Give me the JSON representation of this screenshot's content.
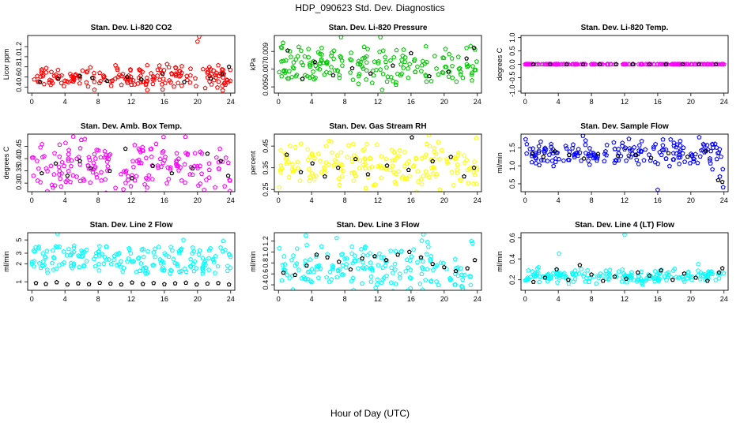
{
  "figure": {
    "title": "HDP_090623  Std. Dev. Diagnostics",
    "xlabel": "Hour of Day (UTC)"
  },
  "chart_data": [
    {
      "type": "scatter",
      "title": "Stan. Dev. Li-820 CO2",
      "ylabel": "Licor ppm",
      "x_ticks": [
        0,
        4,
        8,
        12,
        16,
        20,
        24
      ],
      "y_ticks": [
        0.4,
        0.6,
        0.8,
        1.0,
        1.2
      ],
      "y_tick_labels": [
        "0.4",
        "0.6",
        "0.8",
        "1.0",
        "1.2"
      ],
      "xlim": [
        -0.5,
        24.5
      ],
      "ylim": [
        0.28,
        1.42
      ],
      "color": "#ff0000",
      "series": [
        {
          "sample_of": "colored",
          "x": [
            0.3,
            1.2,
            2.5,
            3.6,
            5.1,
            6.8,
            8.2,
            9.7,
            11.0,
            12.4,
            13.9,
            15.2,
            16.6,
            17.8,
            19.1,
            20.0,
            20.2,
            21.3,
            22.5,
            23.7
          ],
          "y": [
            0.55,
            0.72,
            0.48,
            0.63,
            0.59,
            0.41,
            0.68,
            0.52,
            0.66,
            0.45,
            0.58,
            0.74,
            0.53,
            0.61,
            0.49,
            1.3,
            1.4,
            0.7,
            0.83,
            0.5
          ]
        },
        {
          "sample_of": "black",
          "x": [
            1.0,
            3.2,
            5.8,
            7.3,
            9.1,
            11.5,
            13.2,
            15.8,
            18.4,
            21.6,
            23.0,
            23.8
          ],
          "y": [
            0.5,
            0.56,
            0.62,
            0.58,
            0.52,
            0.6,
            0.55,
            0.66,
            0.5,
            0.57,
            0.65,
            0.8
          ]
        }
      ]
    },
    {
      "type": "scatter",
      "title": "Stan. Dev. Li-820 Pressure",
      "ylabel": "kPa",
      "x_ticks": [
        0,
        4,
        8,
        12,
        16,
        20,
        24
      ],
      "y_ticks": [
        0.005,
        0.007,
        0.009
      ],
      "y_tick_labels": [
        "0.005",
        "0.007",
        "0.009"
      ],
      "xlim": [
        -0.5,
        24.5
      ],
      "ylim": [
        0.0043,
        0.0108
      ],
      "color": "#00c800",
      "series": [
        {
          "sample_of": "colored",
          "x": [
            0.4,
            0.9,
            2.1,
            3.5,
            4.8,
            6.2,
            7.7,
            9.0,
            10.4,
            11.8,
            12.3,
            13.6,
            15.1,
            16.5,
            17.9,
            19.3,
            20.6,
            21.9,
            23.2,
            23.8
          ],
          "y": [
            0.0094,
            0.0068,
            0.0081,
            0.0062,
            0.0089,
            0.0066,
            0.0074,
            0.0058,
            0.0083,
            0.0069,
            0.0106,
            0.0061,
            0.0092,
            0.0067,
            0.0078,
            0.0064,
            0.0087,
            0.0071,
            0.0096,
            0.0069
          ]
        },
        {
          "sample_of": "black",
          "x": [
            1.1,
            2.9,
            4.4,
            6.6,
            8.9,
            11.1,
            13.8,
            16.0,
            18.2,
            20.5,
            22.7,
            23.6
          ],
          "y": [
            0.0091,
            0.0059,
            0.0078,
            0.0063,
            0.0071,
            0.0065,
            0.0074,
            0.0088,
            0.0062,
            0.0067,
            0.0082,
            0.0094
          ]
        }
      ]
    },
    {
      "type": "scatter",
      "title": "Stan. Dev. Li-820 Temp.",
      "ylabel": "degrees C",
      "x_ticks": [
        0,
        4,
        8,
        12,
        16,
        20,
        24
      ],
      "y_ticks": [
        -1.0,
        -0.5,
        0.0,
        0.5,
        1.0
      ],
      "y_tick_labels": [
        "-1.0",
        "-0.5",
        "0.0",
        "0.5",
        "1.0"
      ],
      "xlim": [
        -0.5,
        24.5
      ],
      "ylim": [
        -1.08,
        1.08
      ],
      "color": "#ff00ff",
      "series": [
        {
          "sample_of": "colored",
          "x": [
            0,
            2,
            4,
            6,
            8,
            10,
            12,
            14,
            16,
            18,
            20,
            22,
            24
          ],
          "y": [
            0,
            0,
            0,
            0,
            0,
            0,
            0,
            0,
            0,
            0,
            0,
            0,
            0
          ]
        },
        {
          "sample_of": "black",
          "x": [
            1,
            3,
            5,
            7,
            9,
            11,
            13,
            15,
            17,
            19,
            21,
            23
          ],
          "y": [
            0,
            0,
            0,
            0,
            0,
            0,
            0,
            0,
            0,
            0,
            0,
            0
          ]
        }
      ]
    },
    {
      "type": "scatter",
      "title": "Stan. Dev. Amb. Box Temp.",
      "ylabel": "degrees C",
      "x_ticks": [
        0,
        4,
        8,
        12,
        16,
        20,
        24
      ],
      "y_ticks": [
        0.3,
        0.35,
        0.4,
        0.45
      ],
      "y_tick_labels": [
        "0.30",
        "0.35",
        "0.40",
        "0.45"
      ],
      "xlim": [
        -0.5,
        24.5
      ],
      "ylim": [
        0.265,
        0.5
      ],
      "color": "#ff00ff",
      "series": [
        {
          "sample_of": "colored",
          "x": [
            0.2,
            1.5,
            2.8,
            3.9,
            5.0,
            6.3,
            7.6,
            8.8,
            10.1,
            11.4,
            12.7,
            13.8,
            15.0,
            16.3,
            17.5,
            18.8,
            20.1,
            21.4,
            22.7,
            23.9
          ],
          "y": [
            0.33,
            0.41,
            0.29,
            0.37,
            0.49,
            0.31,
            0.36,
            0.43,
            0.28,
            0.35,
            0.39,
            0.32,
            0.46,
            0.3,
            0.37,
            0.42,
            0.29,
            0.38,
            0.44,
            0.31
          ]
        },
        {
          "sample_of": "black",
          "x": [
            1.2,
            2.9,
            4.3,
            5.8,
            7.1,
            9.4,
            11.3,
            12.1,
            14.6,
            16.9,
            19.4,
            21.2,
            22.8,
            23.7
          ],
          "y": [
            0.34,
            0.38,
            0.33,
            0.39,
            0.36,
            0.35,
            0.44,
            0.32,
            0.37,
            0.34,
            0.36,
            0.42,
            0.39,
            0.33
          ]
        }
      ]
    },
    {
      "type": "scatter",
      "title": "Stan. Dev. Gas Stream RH",
      "ylabel": "percent",
      "x_ticks": [
        0,
        4,
        8,
        12,
        16,
        20,
        24
      ],
      "y_ticks": [
        0.25,
        0.35,
        0.45
      ],
      "y_tick_labels": [
        "0.25",
        "0.35",
        "0.45"
      ],
      "xlim": [
        -0.5,
        24.5
      ],
      "ylim": [
        0.24,
        0.505
      ],
      "color": "#ffff00",
      "series": [
        {
          "sample_of": "colored",
          "x": [
            0.3,
            1.4,
            2.6,
            3.8,
            5.2,
            6.4,
            7.7,
            8.9,
            10.2,
            11.5,
            12.8,
            14.0,
            15.3,
            16.6,
            17.9,
            19.1,
            20.4,
            21.7,
            22.9,
            23.9
          ],
          "y": [
            0.36,
            0.45,
            0.29,
            0.4,
            0.33,
            0.47,
            0.31,
            0.38,
            0.43,
            0.27,
            0.35,
            0.42,
            0.3,
            0.39,
            0.46,
            0.32,
            0.37,
            0.41,
            0.28,
            0.34
          ]
        },
        {
          "sample_of": "black",
          "x": [
            1.0,
            2.7,
            4.1,
            5.6,
            7.2,
            9.3,
            10.8,
            13.1,
            15.7,
            16.1,
            18.6,
            20.8,
            22.4,
            23.6
          ],
          "y": [
            0.41,
            0.33,
            0.37,
            0.31,
            0.35,
            0.39,
            0.32,
            0.36,
            0.34,
            0.49,
            0.38,
            0.4,
            0.31,
            0.35
          ]
        }
      ]
    },
    {
      "type": "scatter",
      "title": "Stan. Dev. Sample Flow",
      "ylabel": "ml/min",
      "x_ticks": [
        0,
        4,
        8,
        12,
        16,
        20,
        24
      ],
      "y_ticks": [
        0.5,
        1.0,
        1.5
      ],
      "y_tick_labels": [
        "0.5",
        "1.0",
        "1.5"
      ],
      "xlim": [
        -0.5,
        24.5
      ],
      "ylim": [
        0.28,
        1.88
      ],
      "color": "#0000ff",
      "series": [
        {
          "sample_of": "colored",
          "x": [
            0.2,
            1.3,
            2.5,
            3.7,
            4.9,
            6.1,
            7.3,
            8.5,
            9.7,
            10.9,
            12.1,
            13.3,
            14.5,
            15.7,
            16.0,
            17.9,
            19.1,
            20.3,
            21.5,
            22.6,
            23.5,
            23.9
          ],
          "y": [
            1.6,
            1.3,
            1.45,
            1.2,
            1.55,
            1.35,
            1.7,
            1.25,
            1.4,
            1.15,
            1.5,
            1.3,
            1.45,
            1.1,
            0.33,
            1.35,
            1.5,
            1.2,
            1.6,
            0.9,
            0.7,
            0.4
          ]
        },
        {
          "sample_of": "black",
          "x": [
            0.9,
            2.2,
            3.6,
            5.3,
            7.1,
            8.8,
            11.2,
            13.4,
            15.2,
            17.3,
            19.6,
            21.8,
            23.3,
            23.8
          ],
          "y": [
            1.35,
            1.25,
            1.4,
            1.3,
            1.2,
            1.33,
            1.28,
            1.3,
            1.22,
            1.35,
            1.25,
            1.4,
            0.6,
            0.55
          ]
        }
      ]
    },
    {
      "type": "scatter",
      "title": "Stan. Dev. Line 2 Flow",
      "ylabel": "ml/min",
      "x_ticks": [
        0,
        4,
        8,
        12,
        16,
        20,
        24
      ],
      "y_ticks": [
        1,
        2,
        3,
        5
      ],
      "y_tick_labels": [
        "1",
        "2",
        "3",
        "5"
      ],
      "y_scale": "log",
      "xlim": [
        -0.5,
        24.5
      ],
      "ylim": [
        0.72,
        6.6
      ],
      "color": "#00ffff",
      "series": [
        {
          "sample_of": "colored",
          "x": [
            0.3,
            1.5,
            2.7,
            3.1,
            3.9,
            5.1,
            6.3,
            7.5,
            8.7,
            9.9,
            11.1,
            12.3,
            13.5,
            14.7,
            15.9,
            17.1,
            18.3,
            19.5,
            20.7,
            21.9,
            23.1,
            23.8
          ],
          "y": [
            2.2,
            1.9,
            2.5,
            6.4,
            2.1,
            4.0,
            1.8,
            2.4,
            2.0,
            2.3,
            1.7,
            2.2,
            2.6,
            1.9,
            2.1,
            2.4,
            5.0,
            2.0,
            1.8,
            2.3,
            4.8,
            2.9
          ]
        },
        {
          "sample_of": "black",
          "x": [
            0.5,
            1.7,
            3.0,
            4.3,
            5.6,
            6.9,
            8.2,
            9.5,
            10.8,
            12.1,
            13.4,
            14.7,
            16.0,
            17.3,
            18.6,
            19.9,
            21.2,
            22.5,
            23.8
          ],
          "y": [
            0.95,
            0.92,
            0.98,
            0.9,
            0.94,
            0.91,
            0.96,
            0.93,
            0.9,
            0.97,
            0.92,
            0.95,
            0.91,
            0.94,
            0.96,
            0.9,
            0.93,
            0.95,
            0.9
          ]
        }
      ]
    },
    {
      "type": "scatter",
      "title": "Stan. Dev. Line 3 Flow",
      "ylabel": "ml/min",
      "x_ticks": [
        0,
        4,
        8,
        12,
        16,
        20,
        24
      ],
      "y_ticks": [
        0.4,
        0.6,
        0.8,
        1.0,
        1.2
      ],
      "y_tick_labels": [
        "0.4",
        "0.6",
        "0.8",
        "1.0",
        "1.2"
      ],
      "xlim": [
        -0.5,
        24.5
      ],
      "ylim": [
        0.3,
        1.35
      ],
      "color": "#00ffff",
      "series": [
        {
          "sample_of": "colored",
          "x": [
            0.4,
            1.6,
            2.8,
            3.3,
            4.0,
            5.2,
            6.4,
            7.6,
            8.8,
            10.0,
            11.2,
            12.4,
            13.6,
            14.8,
            16.0,
            17.2,
            17.5,
            18.4,
            19.6,
            20.8,
            22.0,
            23.2
          ],
          "y": [
            0.48,
            0.85,
            0.52,
            1.3,
            0.45,
            1.1,
            0.5,
            0.95,
            0.47,
            1.05,
            0.55,
            0.9,
            0.44,
            1.0,
            0.52,
            0.88,
            1.32,
            0.46,
            0.8,
            0.5,
            0.7,
            0.55
          ]
        },
        {
          "sample_of": "black",
          "x": [
            0.6,
            2.0,
            3.4,
            4.6,
            5.9,
            7.3,
            8.7,
            10.1,
            11.6,
            13.0,
            14.4,
            15.8,
            17.2,
            18.6,
            20.0,
            21.4,
            22.8,
            23.7
          ],
          "y": [
            0.62,
            0.58,
            0.75,
            0.95,
            0.9,
            0.82,
            0.68,
            0.88,
            0.92,
            0.85,
            0.95,
            1.0,
            0.9,
            0.78,
            0.72,
            0.65,
            0.7,
            0.85
          ]
        }
      ]
    },
    {
      "type": "scatter",
      "title": "Stan. Dev. Line 4 (LT) Flow",
      "ylabel": "ml/min",
      "x_ticks": [
        0,
        4,
        8,
        12,
        16,
        20,
        24
      ],
      "y_ticks": [
        0.2,
        0.4,
        0.6
      ],
      "y_tick_labels": [
        "0.2",
        "0.4",
        "0.6"
      ],
      "xlim": [
        -0.5,
        24.5
      ],
      "ylim": [
        0.1,
        0.65
      ],
      "color": "#00ffff",
      "series": [
        {
          "sample_of": "colored",
          "x": [
            0.3,
            1.5,
            2.7,
            3.9,
            4.1,
            5.3,
            6.5,
            7.7,
            8.9,
            10.1,
            11.3,
            12.0,
            13.7,
            14.9,
            16.1,
            17.3,
            18.5,
            19.7,
            20.9,
            22.1,
            23.3
          ],
          "y": [
            0.22,
            0.27,
            0.19,
            0.25,
            0.45,
            0.2,
            0.26,
            0.18,
            0.24,
            0.21,
            0.28,
            0.63,
            0.2,
            0.25,
            0.19,
            0.27,
            0.22,
            0.24,
            0.35,
            0.21,
            0.26
          ]
        },
        {
          "sample_of": "black",
          "x": [
            1.0,
            2.4,
            3.8,
            5.2,
            6.6,
            8.0,
            9.4,
            10.8,
            12.2,
            13.6,
            15.0,
            16.4,
            17.8,
            19.2,
            20.6,
            22.0,
            23.4,
            23.8
          ],
          "y": [
            0.18,
            0.22,
            0.3,
            0.2,
            0.34,
            0.25,
            0.19,
            0.23,
            0.21,
            0.27,
            0.24,
            0.29,
            0.2,
            0.26,
            0.22,
            0.19,
            0.27,
            0.31
          ]
        }
      ]
    }
  ]
}
